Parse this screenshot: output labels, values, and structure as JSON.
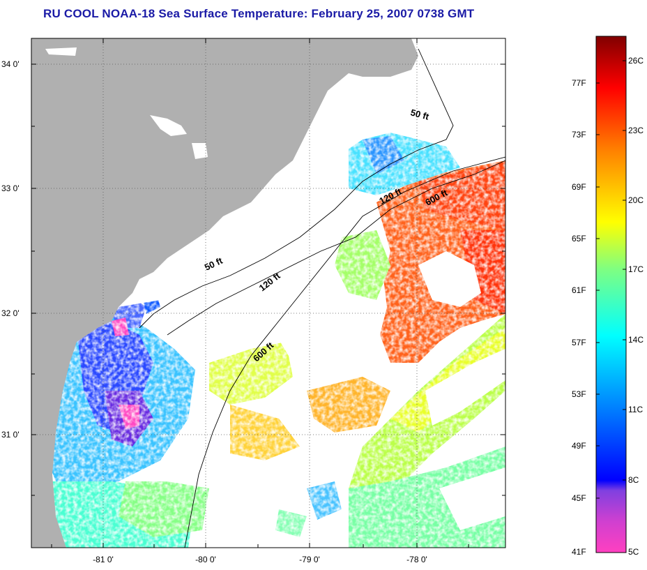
{
  "title": "RU COOL  NOAA-18  Sea Surface Temperature:  February 25, 2007 0738 GMT",
  "map": {
    "lat_labels": [
      "34 0'",
      "33 0'",
      "32 0'",
      "31 0'"
    ],
    "lon_labels": [
      "-81 0'",
      "-80 0'",
      "-79 0'",
      "-78 0'"
    ],
    "contour_labels": [
      "50 ft",
      "120 ft",
      "600 ft",
      "50 ft",
      "120 ft",
      "600 ft"
    ],
    "colors": {
      "land": "#b0b0b0",
      "ocean_cloud": "#ffffff",
      "frame": "#000000"
    }
  },
  "colorbar": {
    "f_labels": [
      "77F",
      "73F",
      "69F",
      "65F",
      "61F",
      "57F",
      "53F",
      "49F",
      "45F",
      "41F"
    ],
    "c_labels": [
      "26C",
      "23C",
      "20C",
      "17C",
      "14C",
      "11C",
      "8C",
      "5C"
    ],
    "gradient": [
      "#ff40c0",
      "#a040e0",
      "#0000ff",
      "#0080ff",
      "#00ffff",
      "#80ff80",
      "#ffff00",
      "#ff8000",
      "#ff0000",
      "#800000"
    ]
  }
}
